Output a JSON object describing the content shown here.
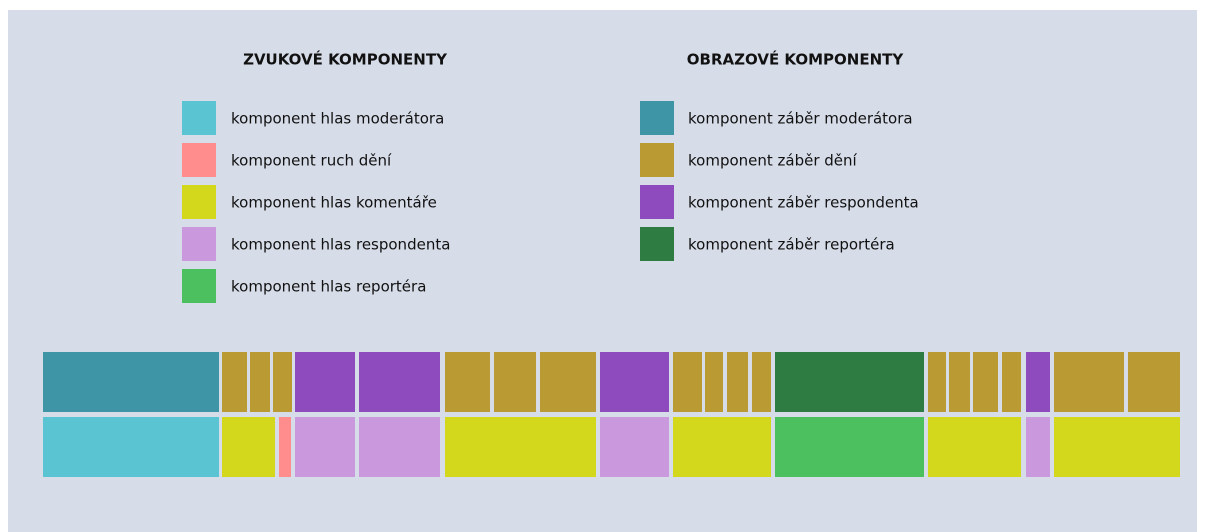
{
  "audio": {
    "title": "ZVUKOVÉ KOMPONENTY",
    "items": [
      {
        "label": "komponent hlas moderátora",
        "color": "#5bc4d3"
      },
      {
        "label": "komponent ruch dění",
        "color": "#ff8d8d"
      },
      {
        "label": "komponent hlas komentáře",
        "color": "#d3d81d"
      },
      {
        "label": "komponent hlas respondenta",
        "color": "#c998dd"
      },
      {
        "label": "komponent hlas reportéra",
        "color": "#4cbf5e"
      }
    ]
  },
  "video": {
    "title": "OBRAZOVÉ KOMPONENTY",
    "items": [
      {
        "label": "komponent záběr moderátora",
        "color": "#3e95a5"
      },
      {
        "label": "komponent záběr dění",
        "color": "#b99a33"
      },
      {
        "label": "komponent záběr respondenta",
        "color": "#8e4bbe"
      },
      {
        "label": "komponent záběr reportéra",
        "color": "#2e7c41"
      }
    ]
  }
}
